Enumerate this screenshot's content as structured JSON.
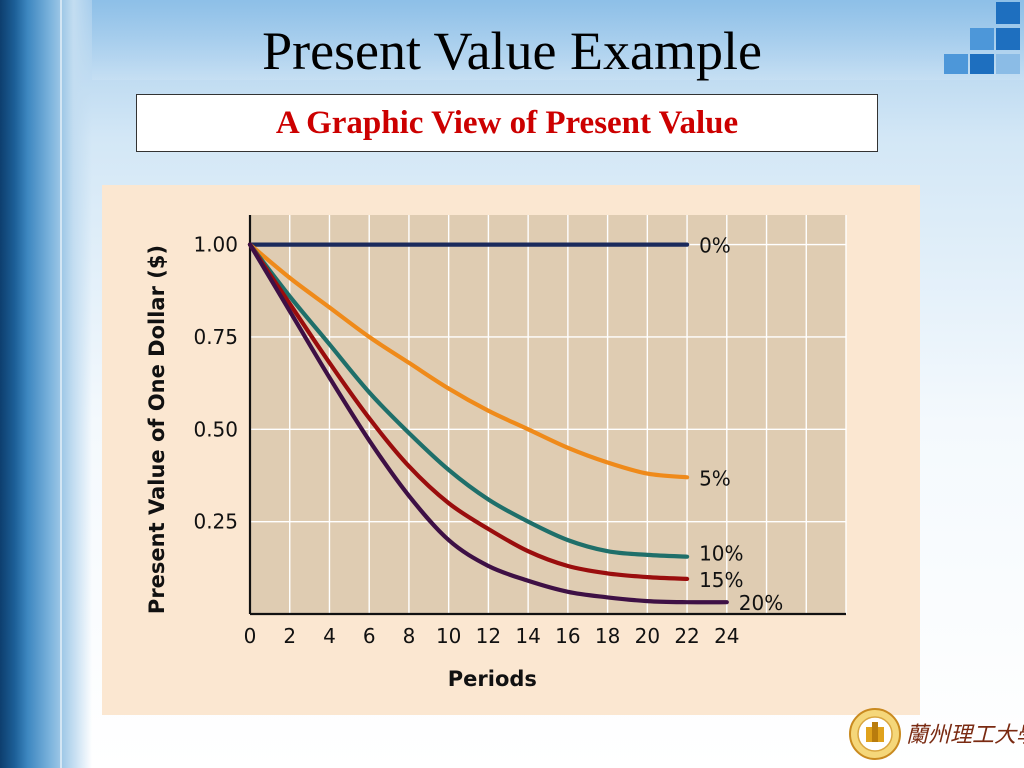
{
  "slide": {
    "title": "Present Value Example",
    "subtitle": "A Graphic View of Present Value",
    "logo_text": "蘭州理工大學",
    "colors": {
      "subtitle_text": "#cc0000",
      "chart_background": "#fbe7d1",
      "plot_background": "#dfccb2"
    }
  },
  "chart_data": {
    "type": "line",
    "title": "",
    "xlabel": "Periods",
    "ylabel": "Present Value of One Dollar ($)",
    "x_ticks": [
      0,
      2,
      4,
      6,
      8,
      10,
      12,
      14,
      16,
      18,
      20,
      22,
      24
    ],
    "y_ticks": [
      0.25,
      0.5,
      0.75,
      1.0
    ],
    "y_tick_labels": [
      "0.25",
      "0.50",
      "0.75",
      "1.00"
    ],
    "xlim": [
      0,
      30
    ],
    "ylim": [
      0,
      1.08
    ],
    "grid": true,
    "series": [
      {
        "name": "0%",
        "color": "#1b2a5c",
        "points": [
          [
            0,
            1.0
          ],
          [
            4,
            1.0
          ],
          [
            8,
            1.0
          ],
          [
            12,
            1.0
          ],
          [
            16,
            1.0
          ],
          [
            20,
            1.0
          ],
          [
            22,
            1.0
          ]
        ]
      },
      {
        "name": "5%",
        "color": "#ef8a1a",
        "points": [
          [
            0,
            1.0
          ],
          [
            2,
            0.91
          ],
          [
            4,
            0.83
          ],
          [
            6,
            0.75
          ],
          [
            8,
            0.68
          ],
          [
            10,
            0.61
          ],
          [
            12,
            0.55
          ],
          [
            14,
            0.5
          ],
          [
            16,
            0.45
          ],
          [
            18,
            0.41
          ],
          [
            20,
            0.38
          ],
          [
            22,
            0.37
          ]
        ]
      },
      {
        "name": "10%",
        "color": "#1f6f6a",
        "points": [
          [
            0,
            1.0
          ],
          [
            2,
            0.86
          ],
          [
            4,
            0.73
          ],
          [
            6,
            0.6
          ],
          [
            8,
            0.49
          ],
          [
            10,
            0.39
          ],
          [
            12,
            0.31
          ],
          [
            14,
            0.25
          ],
          [
            16,
            0.2
          ],
          [
            18,
            0.17
          ],
          [
            20,
            0.16
          ],
          [
            22,
            0.155
          ]
        ]
      },
      {
        "name": "15%",
        "color": "#9a0d0d",
        "points": [
          [
            0,
            1.0
          ],
          [
            2,
            0.84
          ],
          [
            4,
            0.68
          ],
          [
            6,
            0.53
          ],
          [
            8,
            0.4
          ],
          [
            10,
            0.3
          ],
          [
            12,
            0.23
          ],
          [
            14,
            0.17
          ],
          [
            16,
            0.13
          ],
          [
            18,
            0.11
          ],
          [
            20,
            0.1
          ],
          [
            22,
            0.095
          ]
        ]
      },
      {
        "name": "20%",
        "color": "#3e1045",
        "points": [
          [
            0,
            1.0
          ],
          [
            2,
            0.82
          ],
          [
            4,
            0.64
          ],
          [
            6,
            0.47
          ],
          [
            8,
            0.32
          ],
          [
            10,
            0.2
          ],
          [
            12,
            0.13
          ],
          [
            14,
            0.09
          ],
          [
            16,
            0.06
          ],
          [
            18,
            0.045
          ],
          [
            20,
            0.035
          ],
          [
            22,
            0.032
          ],
          [
            24,
            0.032
          ]
        ]
      }
    ]
  }
}
